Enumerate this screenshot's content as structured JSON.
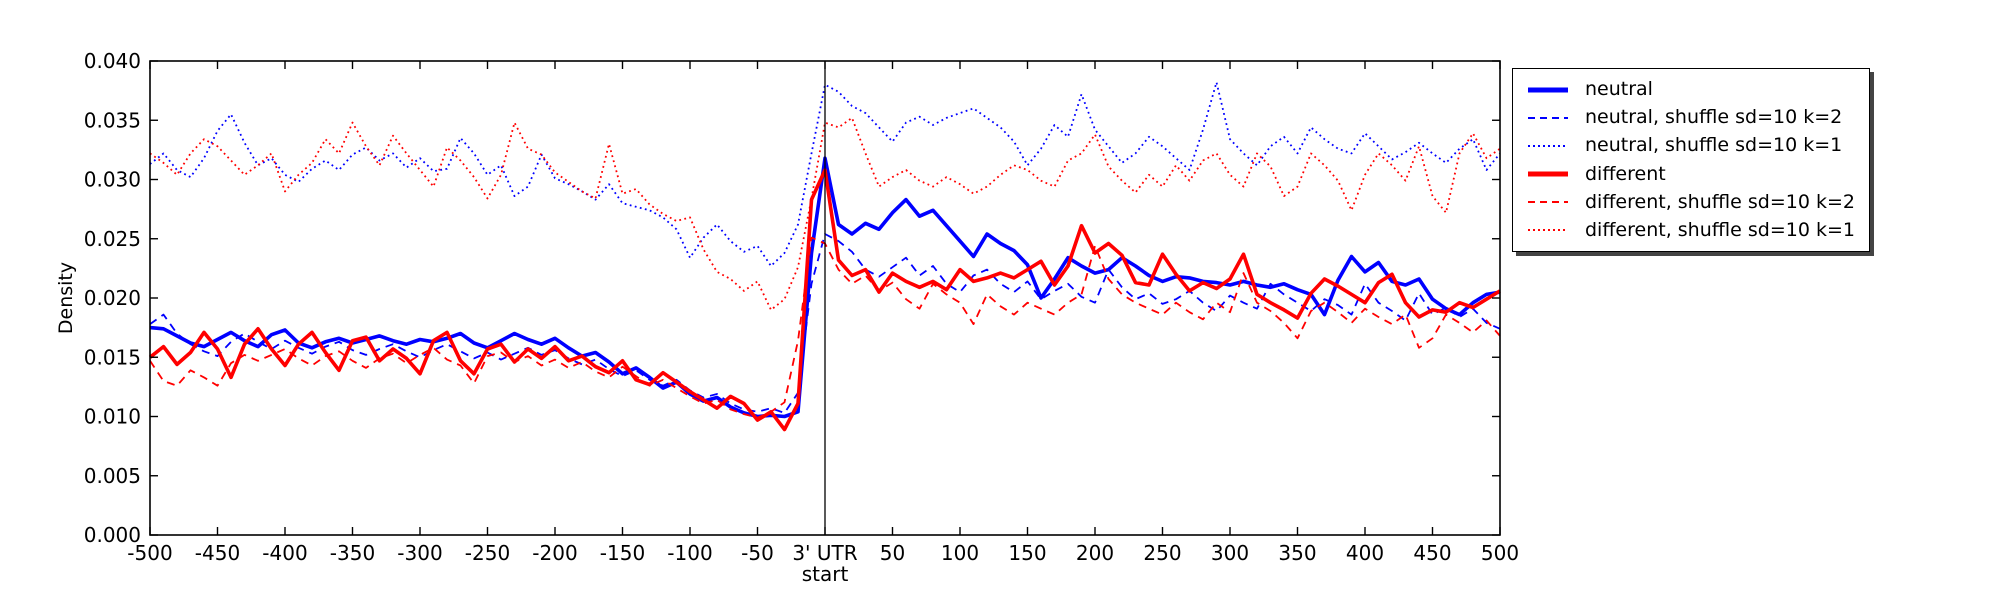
{
  "figure": {
    "background": "#ffffff",
    "axis_color": "#000000",
    "blue": "#0000ff",
    "red": "#ff0000"
  },
  "chart_data": {
    "type": "line",
    "title": "",
    "xlabel": "",
    "ylabel": "Density",
    "xlim": [
      -500,
      500
    ],
    "ylim": [
      0.0,
      0.04
    ],
    "grid": false,
    "legend_position": "outside-upper-right",
    "vline_x": 0,
    "x_ticks": [
      -500,
      -450,
      -400,
      -350,
      -300,
      -250,
      -200,
      -150,
      -100,
      -50,
      0,
      50,
      100,
      150,
      200,
      250,
      300,
      350,
      400,
      450,
      500
    ],
    "x_tick_labels": [
      "-500",
      "-450",
      "-400",
      "-350",
      "-300",
      "-250",
      "-200",
      "-150",
      "-100",
      "-50",
      "3' UTR\nstart",
      "50",
      "100",
      "150",
      "200",
      "250",
      "300",
      "350",
      "400",
      "450",
      "500"
    ],
    "y_ticks": [
      0.0,
      0.005,
      0.01,
      0.015,
      0.02,
      0.025,
      0.03,
      0.035,
      0.04
    ],
    "y_tick_labels": [
      "0.000",
      "0.005",
      "0.010",
      "0.015",
      "0.020",
      "0.025",
      "0.030",
      "0.035",
      "0.040"
    ],
    "x_start": -500,
    "x_step": 10,
    "series": [
      {
        "name": "neutral",
        "color": "#0000ff",
        "style": "solid",
        "values": [
          0.0175,
          0.0174,
          0.0168,
          0.0162,
          0.0159,
          0.0165,
          0.0171,
          0.0164,
          0.0159,
          0.0169,
          0.0173,
          0.0162,
          0.0158,
          0.0163,
          0.0166,
          0.0162,
          0.0165,
          0.0168,
          0.0164,
          0.0161,
          0.0165,
          0.0163,
          0.0166,
          0.017,
          0.0162,
          0.0158,
          0.0164,
          0.017,
          0.0165,
          0.0161,
          0.0166,
          0.0158,
          0.0151,
          0.0154,
          0.0146,
          0.0136,
          0.0141,
          0.0133,
          0.0124,
          0.0129,
          0.0119,
          0.0113,
          0.0116,
          0.0108,
          0.0103,
          0.01,
          0.0101,
          0.01,
          0.0104,
          0.0238,
          0.0318,
          0.0262,
          0.0254,
          0.0263,
          0.0258,
          0.0272,
          0.0283,
          0.0269,
          0.0274,
          0.0261,
          0.0248,
          0.0235,
          0.0254,
          0.0246,
          0.024,
          0.0228,
          0.02,
          0.0216,
          0.0234,
          0.0227,
          0.0221,
          0.0224,
          0.0234,
          0.0227,
          0.0219,
          0.0214,
          0.0218,
          0.0217,
          0.0214,
          0.0213,
          0.0211,
          0.0214,
          0.0211,
          0.0209,
          0.0212,
          0.0207,
          0.0203,
          0.0186,
          0.0215,
          0.0235,
          0.0222,
          0.023,
          0.0214,
          0.0211,
          0.0216,
          0.0199,
          0.0191,
          0.0186,
          0.0196,
          0.0203,
          0.0205
        ]
      },
      {
        "name": "neutral, shuffle sd=10 k=2",
        "color": "#0000ff",
        "style": "dashed",
        "values": [
          0.0178,
          0.0186,
          0.017,
          0.0161,
          0.0155,
          0.0151,
          0.0163,
          0.017,
          0.0163,
          0.0157,
          0.0164,
          0.0158,
          0.0153,
          0.0159,
          0.0163,
          0.0156,
          0.0152,
          0.0157,
          0.0161,
          0.0155,
          0.015,
          0.0156,
          0.0161,
          0.0155,
          0.0149,
          0.0154,
          0.0148,
          0.0153,
          0.0158,
          0.0152,
          0.0156,
          0.0149,
          0.0144,
          0.0148,
          0.014,
          0.0134,
          0.0139,
          0.0131,
          0.0126,
          0.0131,
          0.0122,
          0.0116,
          0.0119,
          0.0111,
          0.0106,
          0.0104,
          0.0107,
          0.0103,
          0.012,
          0.0212,
          0.0254,
          0.0248,
          0.0239,
          0.0224,
          0.0218,
          0.0226,
          0.0234,
          0.0219,
          0.0227,
          0.0212,
          0.0205,
          0.0219,
          0.0224,
          0.0212,
          0.0205,
          0.0214,
          0.0199,
          0.0206,
          0.0212,
          0.0201,
          0.0196,
          0.0224,
          0.0209,
          0.0199,
          0.0204,
          0.0195,
          0.0199,
          0.0206,
          0.0196,
          0.0189,
          0.0202,
          0.0196,
          0.0191,
          0.0212,
          0.0203,
          0.0196,
          0.0189,
          0.0199,
          0.0194,
          0.0186,
          0.0212,
          0.0196,
          0.0189,
          0.0181,
          0.0204,
          0.0186,
          0.0192,
          0.0184,
          0.0191,
          0.0179,
          0.0174
        ]
      },
      {
        "name": "neutral, shuffle sd=10 k=1",
        "color": "#0000ff",
        "style": "dotted",
        "values": [
          0.0313,
          0.0322,
          0.0308,
          0.0302,
          0.0318,
          0.0341,
          0.0355,
          0.0331,
          0.0312,
          0.0318,
          0.0304,
          0.0298,
          0.0309,
          0.0316,
          0.0308,
          0.0321,
          0.0327,
          0.0316,
          0.0322,
          0.031,
          0.0318,
          0.0307,
          0.0309,
          0.0335,
          0.0322,
          0.0304,
          0.0312,
          0.0286,
          0.0294,
          0.0321,
          0.0301,
          0.0296,
          0.029,
          0.0283,
          0.0296,
          0.028,
          0.0277,
          0.0274,
          0.0268,
          0.0258,
          0.0234,
          0.0251,
          0.0262,
          0.0248,
          0.0239,
          0.0244,
          0.0227,
          0.0238,
          0.0262,
          0.0322,
          0.038,
          0.0374,
          0.0362,
          0.0356,
          0.0344,
          0.0332,
          0.0348,
          0.0353,
          0.0346,
          0.0352,
          0.0356,
          0.036,
          0.0352,
          0.0344,
          0.0332,
          0.0312,
          0.0326,
          0.0346,
          0.0336,
          0.0372,
          0.0342,
          0.0328,
          0.0314,
          0.0322,
          0.0336,
          0.0328,
          0.0318,
          0.0308,
          0.0342,
          0.0382,
          0.0334,
          0.0322,
          0.0312,
          0.0328,
          0.0336,
          0.0322,
          0.0344,
          0.0334,
          0.0326,
          0.0322,
          0.0339,
          0.0328,
          0.0317,
          0.0323,
          0.0331,
          0.0322,
          0.0314,
          0.0326,
          0.0334,
          0.0308,
          0.0322
        ]
      },
      {
        "name": "different",
        "color": "#ff0000",
        "style": "solid",
        "values": [
          0.015,
          0.0159,
          0.0144,
          0.0154,
          0.0171,
          0.0157,
          0.0133,
          0.0161,
          0.0174,
          0.0157,
          0.0143,
          0.0161,
          0.0171,
          0.0154,
          0.0139,
          0.0164,
          0.0167,
          0.0147,
          0.0157,
          0.0149,
          0.0136,
          0.0164,
          0.0171,
          0.0147,
          0.0136,
          0.0157,
          0.0161,
          0.0146,
          0.0157,
          0.0149,
          0.0159,
          0.0147,
          0.0151,
          0.0142,
          0.0137,
          0.0147,
          0.0131,
          0.0127,
          0.0137,
          0.0129,
          0.0121,
          0.0114,
          0.0107,
          0.0117,
          0.0111,
          0.0097,
          0.0104,
          0.0089,
          0.0111,
          0.0283,
          0.0308,
          0.0232,
          0.0219,
          0.0224,
          0.0205,
          0.0221,
          0.0214,
          0.0209,
          0.0214,
          0.0207,
          0.0224,
          0.0214,
          0.0217,
          0.0221,
          0.0217,
          0.0224,
          0.0231,
          0.0211,
          0.0227,
          0.0261,
          0.0238,
          0.0246,
          0.0236,
          0.0213,
          0.0211,
          0.0237,
          0.022,
          0.0206,
          0.0213,
          0.0208,
          0.0216,
          0.0237,
          0.0203,
          0.0196,
          0.019,
          0.0183,
          0.0204,
          0.0216,
          0.021,
          0.0203,
          0.0196,
          0.0213,
          0.022,
          0.0196,
          0.0184,
          0.019,
          0.0188,
          0.0196,
          0.0192,
          0.0199,
          0.0206
        ]
      },
      {
        "name": "different, shuffle sd=10 k=2",
        "color": "#ff0000",
        "style": "dashed",
        "values": [
          0.0147,
          0.013,
          0.0126,
          0.0139,
          0.0133,
          0.0126,
          0.0145,
          0.0152,
          0.0147,
          0.0152,
          0.0157,
          0.0149,
          0.0143,
          0.0151,
          0.0155,
          0.0147,
          0.0141,
          0.0149,
          0.0153,
          0.0145,
          0.0152,
          0.0158,
          0.0148,
          0.0143,
          0.0128,
          0.0151,
          0.0154,
          0.0146,
          0.0151,
          0.0143,
          0.0148,
          0.0141,
          0.0146,
          0.0138,
          0.0133,
          0.0142,
          0.0134,
          0.0126,
          0.0131,
          0.0124,
          0.0117,
          0.0111,
          0.0114,
          0.0106,
          0.0102,
          0.0099,
          0.0104,
          0.0112,
          0.0164,
          0.0251,
          0.0246,
          0.0224,
          0.0212,
          0.0219,
          0.0206,
          0.0213,
          0.0199,
          0.0191,
          0.0212,
          0.0203,
          0.0196,
          0.0178,
          0.0203,
          0.0193,
          0.0186,
          0.0196,
          0.0191,
          0.0186,
          0.0196,
          0.0203,
          0.0244,
          0.0216,
          0.0203,
          0.0196,
          0.0191,
          0.0186,
          0.0196,
          0.0188,
          0.0182,
          0.0196,
          0.0188,
          0.0221,
          0.0196,
          0.0189,
          0.0179,
          0.0166,
          0.0189,
          0.0196,
          0.0188,
          0.0179,
          0.0191,
          0.0184,
          0.0178,
          0.0186,
          0.0158,
          0.0166,
          0.0186,
          0.0179,
          0.0171,
          0.0181,
          0.0168
        ]
      },
      {
        "name": "different, shuffle sd=10 k=1",
        "color": "#ff0000",
        "style": "dotted",
        "values": [
          0.0322,
          0.0314,
          0.0304,
          0.0322,
          0.0334,
          0.0328,
          0.0316,
          0.0304,
          0.0312,
          0.0322,
          0.029,
          0.0304,
          0.0314,
          0.0334,
          0.0322,
          0.0348,
          0.0328,
          0.0312,
          0.0337,
          0.0322,
          0.0308,
          0.0294,
          0.0327,
          0.0316,
          0.0302,
          0.0284,
          0.0304,
          0.0348,
          0.0326,
          0.0321,
          0.0306,
          0.0298,
          0.029,
          0.0284,
          0.033,
          0.0288,
          0.0292,
          0.0279,
          0.0271,
          0.0265,
          0.0268,
          0.0241,
          0.0222,
          0.0216,
          0.0206,
          0.0214,
          0.019,
          0.0199,
          0.0226,
          0.0284,
          0.0348,
          0.0344,
          0.0352,
          0.0322,
          0.0294,
          0.0302,
          0.0308,
          0.0299,
          0.0294,
          0.0302,
          0.0296,
          0.0288,
          0.0294,
          0.0304,
          0.0312,
          0.0308,
          0.0299,
          0.0294,
          0.0316,
          0.0322,
          0.0338,
          0.0311,
          0.0299,
          0.0289,
          0.0304,
          0.0294,
          0.0312,
          0.0299,
          0.0316,
          0.0322,
          0.0304,
          0.0294,
          0.0322,
          0.0311,
          0.0286,
          0.0294,
          0.0322,
          0.0312,
          0.0299,
          0.0274,
          0.0304,
          0.0322,
          0.0312,
          0.0299,
          0.0328,
          0.0286,
          0.0272,
          0.0322,
          0.0339,
          0.0318,
          0.0326
        ]
      }
    ]
  }
}
